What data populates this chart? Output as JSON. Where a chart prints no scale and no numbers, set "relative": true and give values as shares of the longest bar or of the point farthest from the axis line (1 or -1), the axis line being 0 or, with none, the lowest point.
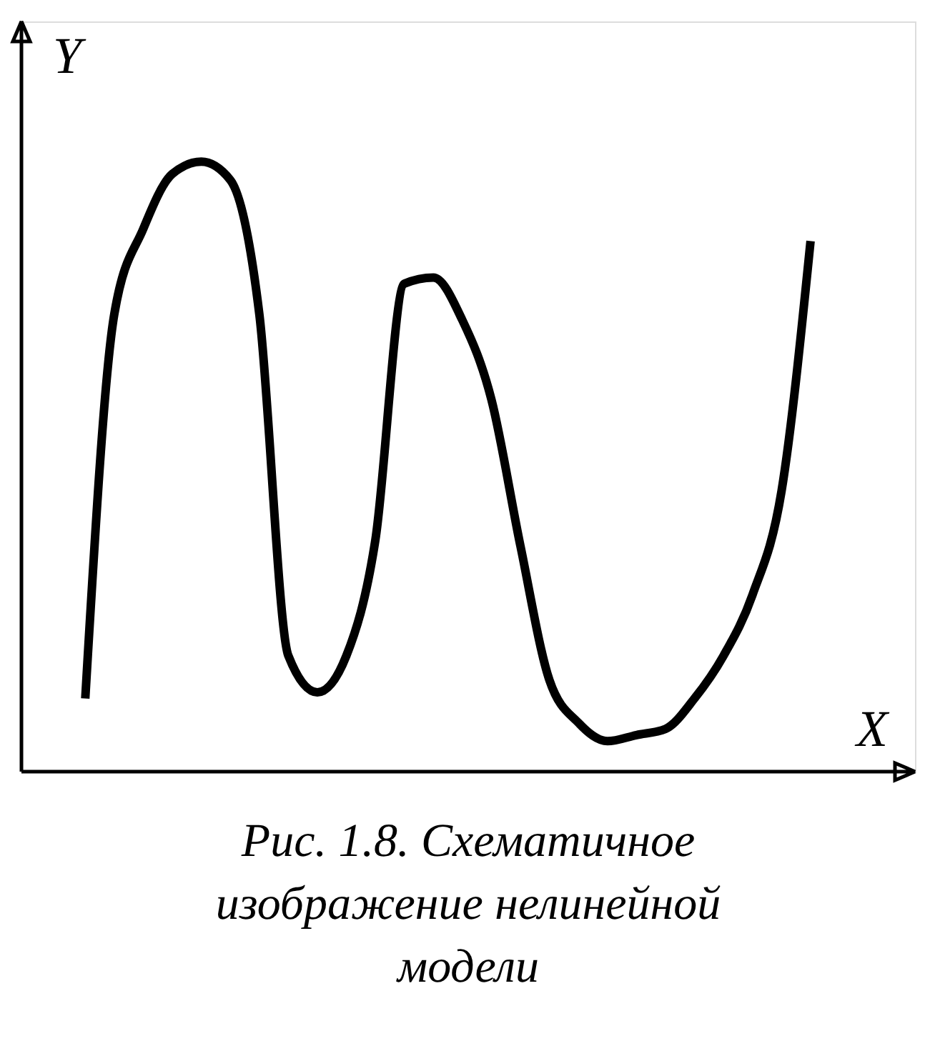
{
  "chart_data": {
    "type": "line",
    "relative": true,
    "xlabel": "X",
    "ylabel": "Y",
    "categories": [
      null,
      null,
      null,
      null,
      null,
      null,
      null,
      null,
      null,
      null,
      null,
      null,
      null,
      null,
      null,
      null,
      null,
      null,
      null,
      null,
      null,
      null,
      null,
      null,
      null,
      null
    ],
    "series": [
      {
        "color": "#000000",
        "values": [
          0.12,
          0.75,
          0.89,
          0.98,
          1.0,
          0.97,
          0.75,
          0.19,
          0.13,
          0.19,
          0.38,
          0.8,
          0.81,
          0.74,
          0.61,
          0.37,
          0.15,
          0.08,
          0.05,
          0.06,
          0.07,
          0.12,
          0.19,
          0.29,
          0.46,
          0.87
        ]
      }
    ],
    "annotations": [
      "Рис. 1.8. Схематичное изображение нелинейной модели"
    ],
    "marker": "none",
    "line_style": "solid"
  }
}
